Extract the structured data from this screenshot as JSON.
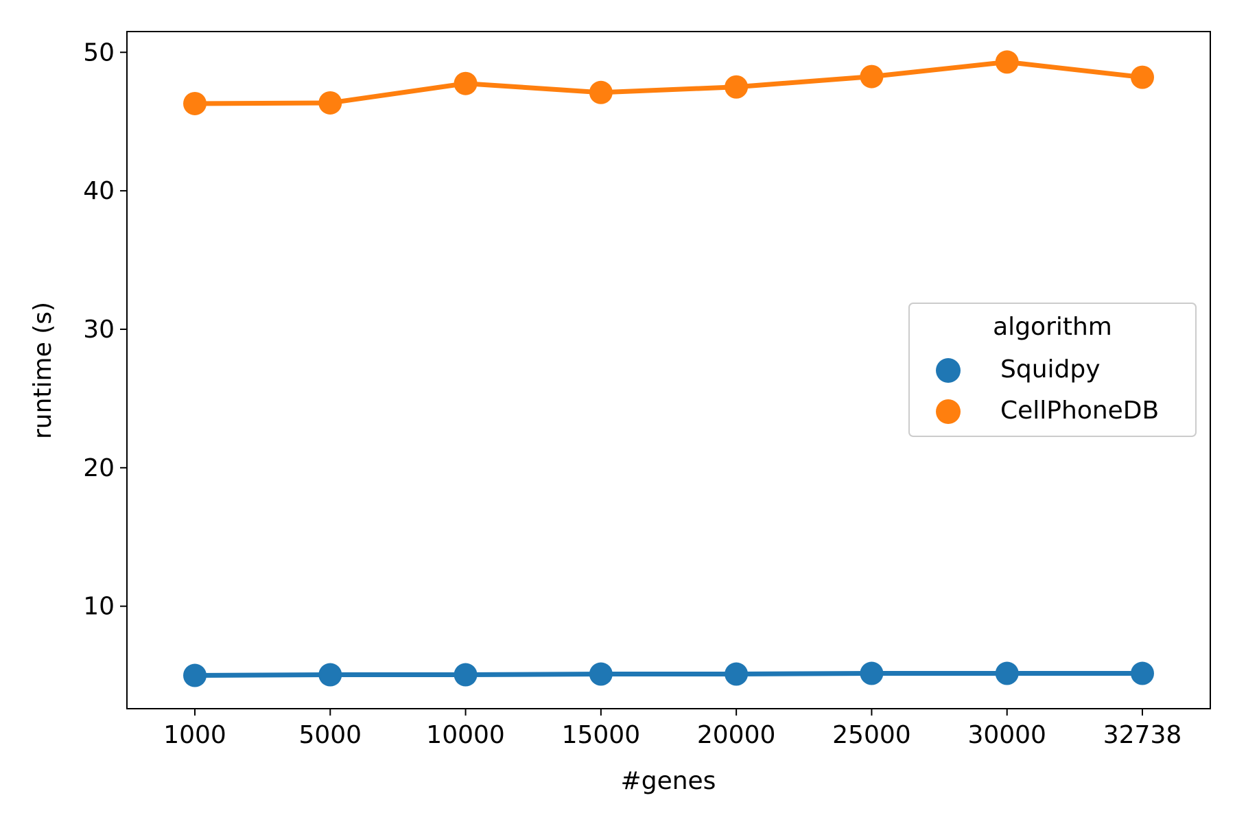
{
  "chart_data": {
    "type": "line",
    "title": "",
    "xlabel": "#genes",
    "ylabel": "runtime (s)",
    "categories": [
      "1000",
      "5000",
      "10000",
      "15000",
      "20000",
      "25000",
      "30000",
      "32738"
    ],
    "ylim": [
      2.6,
      51.5
    ],
    "yticks": [
      10,
      20,
      30,
      40,
      50
    ],
    "grid": false,
    "legend": {
      "title": "algorithm",
      "placement": "center-right"
    },
    "series": [
      {
        "name": "Squidpy",
        "color": "#1f77b4",
        "values": [
          5.0,
          5.05,
          5.05,
          5.1,
          5.1,
          5.15,
          5.15,
          5.15
        ]
      },
      {
        "name": "CellPhoneDB",
        "color": "#ff7f0e",
        "values": [
          46.3,
          46.35,
          47.75,
          47.1,
          47.5,
          48.25,
          49.3,
          48.2
        ]
      }
    ]
  }
}
